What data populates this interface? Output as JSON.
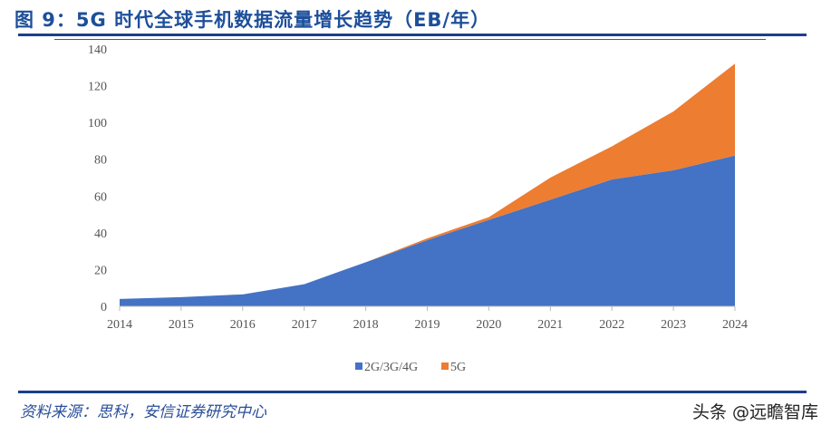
{
  "header": {
    "title": "图 9：5G 时代全球手机数据流量增长趋势（EB/年）"
  },
  "footer": {
    "source": "资料来源：思科，安信证券研究中心",
    "watermark": "头条 @远瞻智库"
  },
  "chart_data": {
    "type": "area",
    "stacked": true,
    "x": [
      "2014",
      "2015",
      "2016",
      "2017",
      "2018",
      "2019",
      "2020",
      "2021",
      "2022",
      "2023",
      "2024"
    ],
    "series": [
      {
        "name": "2G/3G/4G",
        "color": "#4472c4",
        "values": [
          4,
          5,
          6.5,
          12,
          24,
          36,
          47,
          58,
          69,
          74,
          82
        ]
      },
      {
        "name": "5G",
        "color": "#ed7d31",
        "values": [
          0,
          0,
          0,
          0,
          0,
          1,
          1.5,
          12,
          18,
          32,
          50
        ]
      }
    ],
    "ylim": [
      0,
      140
    ],
    "yticks": [
      "0",
      "20",
      "40",
      "60",
      "80",
      "100",
      "120",
      "140"
    ],
    "grid": false,
    "legend": "bottom"
  }
}
